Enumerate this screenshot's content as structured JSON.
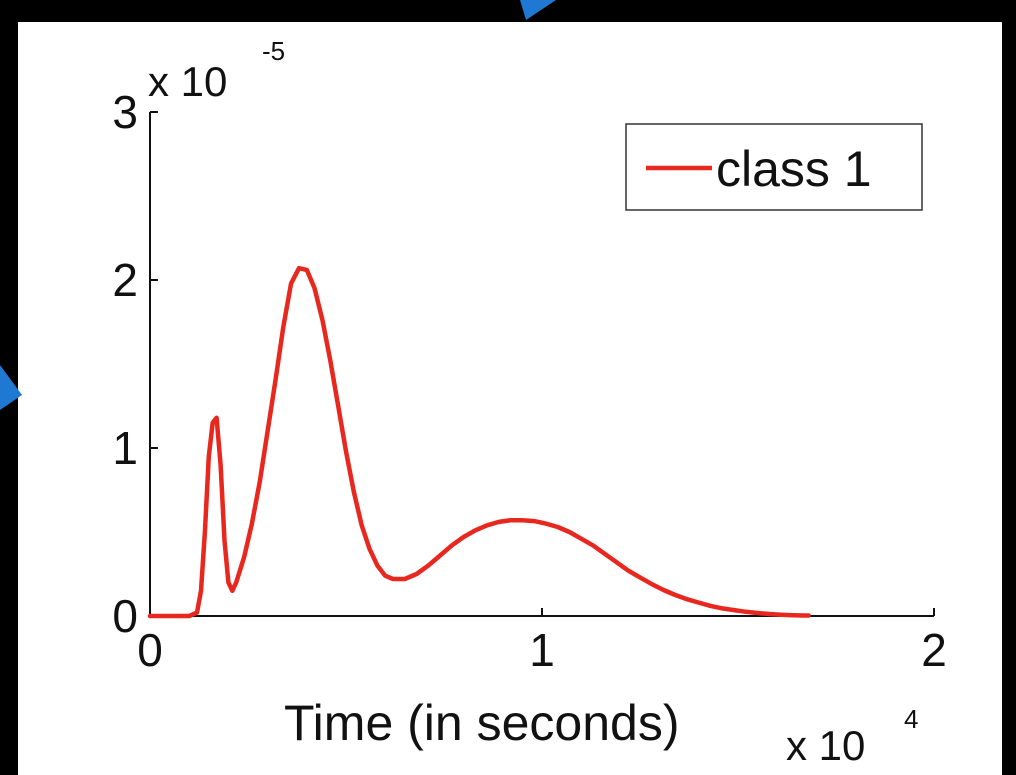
{
  "chart_data": {
    "type": "line",
    "xlabel": "Time (in seconds)",
    "ylabel": "",
    "x_exponent": "x 10",
    "x_exponent_power": "4",
    "y_exponent": "x 10",
    "y_exponent_power": "-5",
    "xlim": [
      0,
      2
    ],
    "ylim": [
      0,
      3
    ],
    "x_ticks": [
      "0",
      "1",
      "2"
    ],
    "y_ticks": [
      "0",
      "1",
      "2",
      "3"
    ],
    "legend": {
      "placement": "top-right",
      "entries": [
        "class 1"
      ]
    },
    "grid": false,
    "colors": {
      "series": "#e8281e",
      "axes": "#111111",
      "background": "#ffffff",
      "frame": "#000000",
      "accent": "#1f78d1"
    },
    "series": [
      {
        "name": "class 1",
        "x": [
          0,
          0.05,
          0.1,
          0.12,
          0.13,
          0.14,
          0.15,
          0.16,
          0.17,
          0.18,
          0.19,
          0.2,
          0.21,
          0.22,
          0.24,
          0.26,
          0.28,
          0.3,
          0.32,
          0.34,
          0.36,
          0.38,
          0.4,
          0.42,
          0.44,
          0.46,
          0.48,
          0.5,
          0.52,
          0.54,
          0.56,
          0.58,
          0.6,
          0.62,
          0.65,
          0.68,
          0.71,
          0.74,
          0.77,
          0.8,
          0.83,
          0.86,
          0.89,
          0.92,
          0.95,
          0.98,
          1.01,
          1.04,
          1.07,
          1.1,
          1.13,
          1.16,
          1.19,
          1.22,
          1.25,
          1.28,
          1.31,
          1.34,
          1.37,
          1.4,
          1.43,
          1.46,
          1.49,
          1.52,
          1.55,
          1.58,
          1.61,
          1.64,
          1.67,
          1.68
        ],
        "values": [
          0,
          0,
          0,
          0.02,
          0.15,
          0.5,
          0.95,
          1.15,
          1.18,
          0.9,
          0.45,
          0.2,
          0.15,
          0.2,
          0.35,
          0.55,
          0.8,
          1.1,
          1.4,
          1.72,
          1.98,
          2.07,
          2.06,
          1.95,
          1.76,
          1.52,
          1.25,
          0.98,
          0.74,
          0.54,
          0.4,
          0.3,
          0.24,
          0.22,
          0.22,
          0.25,
          0.3,
          0.36,
          0.42,
          0.47,
          0.51,
          0.54,
          0.56,
          0.57,
          0.57,
          0.565,
          0.55,
          0.53,
          0.5,
          0.46,
          0.42,
          0.37,
          0.32,
          0.27,
          0.23,
          0.19,
          0.155,
          0.125,
          0.1,
          0.08,
          0.06,
          0.045,
          0.035,
          0.025,
          0.018,
          0.012,
          0.008,
          0.005,
          0.003,
          0.003
        ]
      }
    ]
  }
}
